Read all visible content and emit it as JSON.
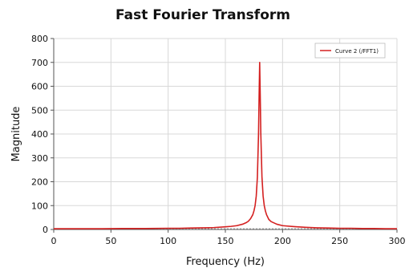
{
  "chart_data": {
    "type": "line",
    "title": "Fast Fourier Transform",
    "xlabel": "Frequency (Hz)",
    "ylabel": "Magnitude",
    "xlim": [
      0,
      300
    ],
    "ylim": [
      0,
      800
    ],
    "xticks": [
      0,
      50,
      100,
      150,
      200,
      250,
      300
    ],
    "yticks": [
      0,
      100,
      200,
      300,
      400,
      500,
      600,
      700,
      800
    ],
    "grid": true,
    "legend_position": "top-right",
    "series": [
      {
        "name": "Curve 2 (/FFT1)",
        "color": "#d42020",
        "x": [
          0,
          20,
          40,
          60,
          80,
          100,
          110,
          120,
          130,
          140,
          150,
          155,
          160,
          165,
          168,
          170,
          172,
          174,
          175,
          176,
          177,
          178,
          179,
          179.5,
          180,
          180.5,
          181,
          182,
          183,
          184,
          185,
          186,
          188,
          190,
          195,
          200,
          210,
          220,
          230,
          240,
          250,
          260,
          270,
          280,
          290,
          300
        ],
        "y": [
          3,
          3,
          3,
          4,
          4,
          5,
          5,
          6,
          7,
          8,
          11,
          13,
          16,
          22,
          28,
          34,
          45,
          62,
          78,
          100,
          140,
          220,
          400,
          560,
          700,
          560,
          400,
          220,
          140,
          100,
          78,
          62,
          42,
          33,
          22,
          16,
          12,
          9,
          7,
          6,
          5,
          5,
          4,
          4,
          3,
          3
        ]
      }
    ]
  }
}
